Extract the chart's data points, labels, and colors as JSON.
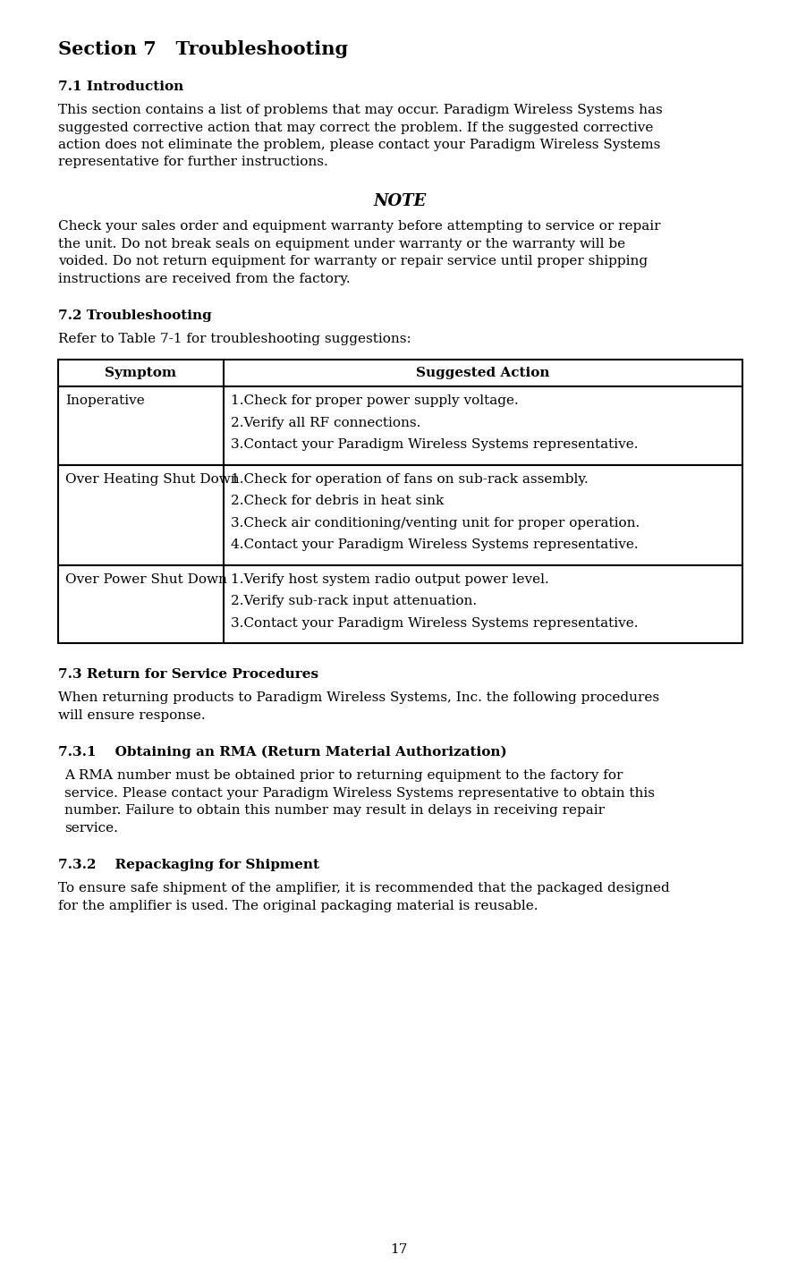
{
  "bg_color": "#ffffff",
  "page_number": "17",
  "section_title": "Section 7   Troubleshooting",
  "heading71": "7.1 Introduction",
  "body71": "This section contains a list of problems that may occur. Paradigm Wireless Systems has suggested corrective action that may correct the problem. If the suggested corrective action does not eliminate the problem, please contact your Paradigm Wireless Systems representative for further instructions.",
  "note_title": "NOTE",
  "note_body": "Check your sales order and equipment warranty before attempting to service or repair the unit. Do not break seals on equipment under warranty or the warranty will be voided. Do not return equipment for warranty or repair service until proper shipping instructions are received from the factory.",
  "heading72": "7.2 Troubleshooting",
  "intro72": "Refer to Table 7-1 for troubleshooting suggestions:",
  "table_col1_header": "Symptom",
  "table_col2_header": "Suggested Action",
  "table_rows": [
    {
      "symptom": "Inoperative",
      "actions": [
        "1.Check for proper power supply voltage.",
        "2.Verify all RF connections.",
        "3.Contact your Paradigm Wireless Systems representative."
      ]
    },
    {
      "symptom": "Over Heating Shut Down",
      "actions": [
        "1.Check for operation of fans on sub-rack assembly.",
        "2.Check for debris in heat sink",
        "3.Check air conditioning/venting unit for proper operation.",
        "4.Contact your Paradigm Wireless Systems representative."
      ]
    },
    {
      "symptom": "Over Power Shut Down",
      "actions": [
        "1.Verify host system radio output power level.",
        "2.Verify sub-rack input attenuation.",
        "3.Contact your Paradigm Wireless Systems representative."
      ]
    }
  ],
  "heading73": "7.3 Return for Service Procedures",
  "body73": "When returning products to Paradigm Wireless Systems, Inc. the following procedures will ensure response.",
  "heading731": "7.3.1    Obtaining an RMA (Return Material Authorization)",
  "body731": "A RMA number must be obtained prior to returning equipment to the factory for service. Please contact your Paradigm Wireless Systems representative to obtain this number. Failure to obtain this number may result in delays in receiving repair service.",
  "heading732": "7.3.2    Repackaging for Shipment",
  "body732": "To ensure safe shipment of the amplifier, it is recommended that the packaged designed for the amplifier is used. The original packaging material is reusable.",
  "text_color": "#000000",
  "font_family": "DejaVu Serif"
}
